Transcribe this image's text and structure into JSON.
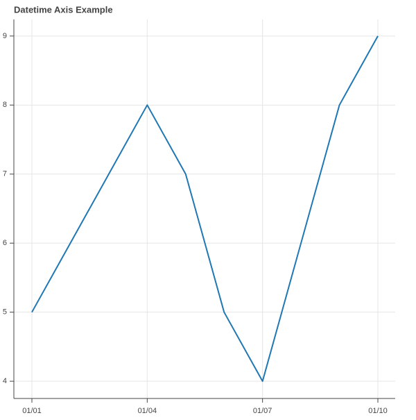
{
  "chart_data": {
    "type": "line",
    "title": "Datetime Axis Example",
    "x": [
      "01/01",
      "01/02",
      "01/03",
      "01/04",
      "01/05",
      "01/06",
      "01/07",
      "01/08",
      "01/09",
      "01/10"
    ],
    "series": [
      {
        "color": "#1f77b4",
        "values": [
          5,
          6,
          7,
          8,
          7,
          5,
          4,
          6,
          8,
          9
        ]
      }
    ],
    "xticks": [
      "01/01",
      "01/04",
      "01/07",
      "01/10"
    ],
    "ylim": [
      3.75,
      9.24
    ],
    "yticks": [
      4,
      5,
      6,
      7,
      8,
      9
    ],
    "grid": true
  }
}
